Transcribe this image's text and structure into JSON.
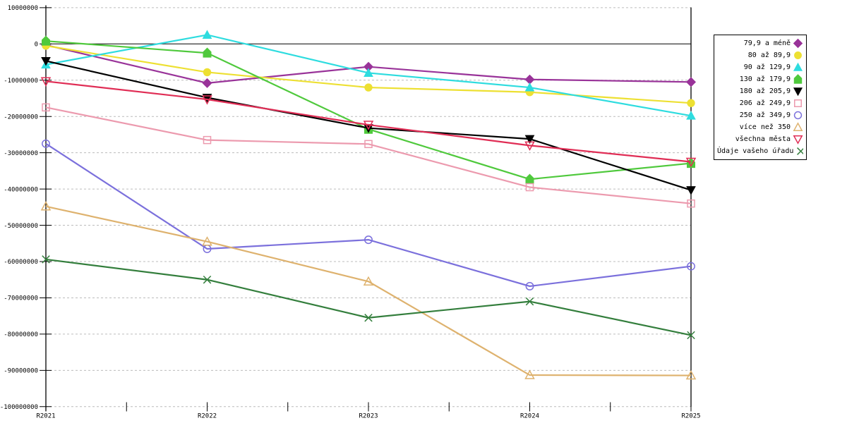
{
  "chart_data": {
    "type": "line",
    "title": "",
    "xlabel": "",
    "ylabel": "",
    "categories": [
      "R2021",
      "R2022",
      "R2023",
      "R2024",
      "R2025"
    ],
    "ylim": [
      -100000000,
      10000000
    ],
    "ytick_step": 10000000,
    "ytick_labels": [
      "10000000",
      "0",
      "-10000000",
      "-20000000",
      "-30000000",
      "-40000000",
      "-50000000",
      "-60000000",
      "-70000000",
      "-80000000",
      "-90000000",
      "-100000000"
    ],
    "grid": "horizontal-dashed",
    "legend_position": "right",
    "colors": {
      "grid": "#bcbcbc",
      "axis": "#000000",
      "background": "#ffffff"
    },
    "series": [
      {
        "name": "79,9 a méně",
        "marker": "diamond",
        "style": "filled",
        "color": "#993399",
        "values": [
          -300000,
          -10800000,
          -6300000,
          -9800000,
          -10500000
        ]
      },
      {
        "name": "80 až 89,9",
        "marker": "circle",
        "style": "filled",
        "color": "#EDE032",
        "values": [
          -500000,
          -7800000,
          -12000000,
          -13300000,
          -16300000
        ]
      },
      {
        "name": "90 až 129,9",
        "marker": "triangle-up",
        "style": "filled",
        "color": "#2EDCDF",
        "values": [
          -5700000,
          2500000,
          -8000000,
          -12000000,
          -19800000
        ]
      },
      {
        "name": "130 až 179,9",
        "marker": "house",
        "style": "filled",
        "color": "#4FC93C",
        "values": [
          800000,
          -2500000,
          -23500000,
          -37300000,
          -32900000
        ]
      },
      {
        "name": "180 až 205,9",
        "marker": "triangle-down",
        "style": "filled",
        "color": "#000000",
        "values": [
          -4700000,
          -14800000,
          -23200000,
          -26200000,
          -40300000
        ]
      },
      {
        "name": "206 až 249,9",
        "marker": "square",
        "style": "open",
        "color": "#EC9AAE",
        "values": [
          -17500000,
          -26500000,
          -27600000,
          -39500000,
          -44000000
        ]
      },
      {
        "name": "250 až 349,9",
        "marker": "circle",
        "style": "open",
        "color": "#7B70DC",
        "values": [
          -27500000,
          -56500000,
          -54000000,
          -66800000,
          -61300000
        ]
      },
      {
        "name": "více než 350",
        "marker": "triangle-up",
        "style": "open",
        "color": "#DEB26E",
        "values": [
          -44800000,
          -54500000,
          -65500000,
          -91300000,
          -91400000
        ]
      },
      {
        "name": "všechna města",
        "marker": "triangle-down",
        "style": "open",
        "color": "#E02D55",
        "values": [
          -10300000,
          -15300000,
          -22300000,
          -28000000,
          -32500000
        ]
      },
      {
        "name": "Údaje vašeho úřadu",
        "marker": "x-cross",
        "style": "open",
        "color": "#337E3C",
        "values": [
          -59400000,
          -65000000,
          -75500000,
          -71000000,
          -80300000
        ]
      }
    ]
  }
}
